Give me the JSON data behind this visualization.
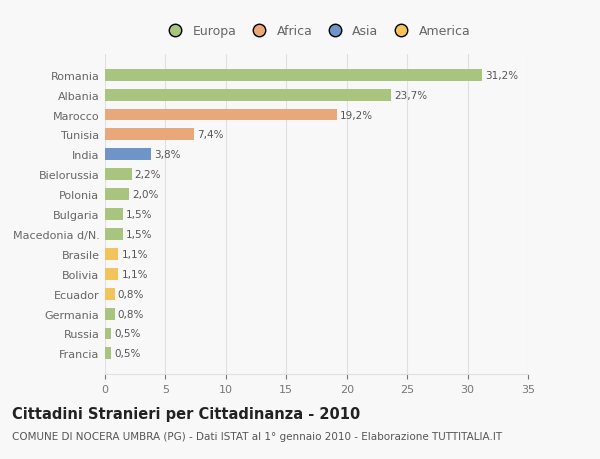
{
  "categories": [
    "Francia",
    "Russia",
    "Germania",
    "Ecuador",
    "Bolivia",
    "Brasile",
    "Macedonia d/N.",
    "Bulgaria",
    "Polonia",
    "Bielorussia",
    "India",
    "Tunisia",
    "Marocco",
    "Albania",
    "Romania"
  ],
  "values": [
    0.5,
    0.5,
    0.8,
    0.8,
    1.1,
    1.1,
    1.5,
    1.5,
    2.0,
    2.2,
    3.8,
    7.4,
    19.2,
    23.7,
    31.2
  ],
  "labels": [
    "0,5%",
    "0,5%",
    "0,8%",
    "0,8%",
    "1,1%",
    "1,1%",
    "1,5%",
    "1,5%",
    "2,0%",
    "2,2%",
    "3,8%",
    "7,4%",
    "19,2%",
    "23,7%",
    "31,2%"
  ],
  "colors": [
    "#a8c47e",
    "#a8c47e",
    "#a8c47e",
    "#f2c45a",
    "#f2c45a",
    "#f2c45a",
    "#a8c47e",
    "#a8c47e",
    "#a8c47e",
    "#a8c47e",
    "#6e94c8",
    "#e8a87a",
    "#e8a87a",
    "#a8c47e",
    "#a8c47e"
  ],
  "legend_labels": [
    "Europa",
    "Africa",
    "Asia",
    "America"
  ],
  "legend_colors": [
    "#a8c47e",
    "#e8a87a",
    "#6e94c8",
    "#f2c45a"
  ],
  "title": "Cittadini Stranieri per Cittadinanza - 2010",
  "subtitle": "COMUNE DI NOCERA UMBRA (PG) - Dati ISTAT al 1° gennaio 2010 - Elaborazione TUTTITALIA.IT",
  "xlim": [
    0,
    35
  ],
  "xticks": [
    0,
    5,
    10,
    15,
    20,
    25,
    30,
    35
  ],
  "bg_color": "#f8f8f8",
  "grid_color": "#e0e0e0",
  "bar_height": 0.6,
  "title_fontsize": 10.5,
  "subtitle_fontsize": 7.5,
  "label_fontsize": 7.5,
  "tick_fontsize": 8,
  "legend_fontsize": 9
}
